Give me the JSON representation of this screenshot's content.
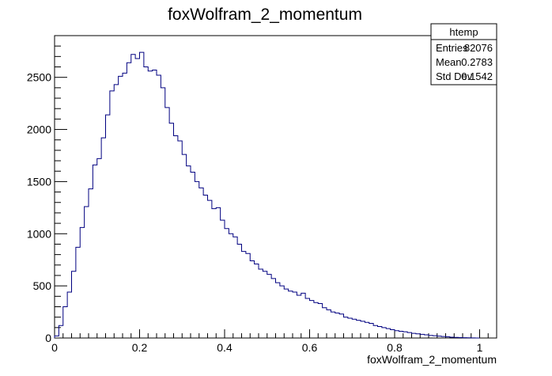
{
  "chart_data": {
    "type": "histogram",
    "title": "foxWolfram_2_momentum",
    "xlabel": "foxWolfram_2_momentum",
    "ylabel": "",
    "xlim": [
      0,
      1.04
    ],
    "ylim": [
      0,
      2900
    ],
    "x_ticks": [
      0,
      0.2,
      0.4,
      0.6,
      0.8,
      1
    ],
    "x_tick_labels": [
      "0",
      "0.2",
      "0.4",
      "0.6",
      "0.8",
      "1"
    ],
    "y_ticks": [
      0,
      500,
      1000,
      1500,
      2000,
      2500
    ],
    "y_tick_labels": [
      "0",
      "500",
      "1000",
      "1500",
      "2000",
      "2500"
    ],
    "bin_start": 0,
    "bin_width": 0.01,
    "values": [
      20,
      120,
      300,
      440,
      640,
      870,
      1060,
      1260,
      1430,
      1660,
      1720,
      1920,
      2140,
      2370,
      2430,
      2510,
      2540,
      2640,
      2720,
      2680,
      2740,
      2600,
      2560,
      2570,
      2520,
      2400,
      2210,
      2060,
      1940,
      1890,
      1760,
      1650,
      1590,
      1500,
      1440,
      1370,
      1320,
      1240,
      1250,
      1130,
      1050,
      1000,
      970,
      900,
      830,
      810,
      740,
      710,
      660,
      640,
      610,
      570,
      530,
      500,
      470,
      450,
      440,
      410,
      430,
      380,
      360,
      340,
      330,
      290,
      270,
      250,
      240,
      230,
      200,
      190,
      180,
      170,
      160,
      150,
      140,
      120,
      110,
      100,
      90,
      80,
      70,
      65,
      60,
      52,
      45,
      40,
      35,
      30,
      25,
      22,
      18,
      14,
      11,
      8,
      6,
      4,
      3,
      2,
      1,
      0
    ],
    "line_color": "#000080",
    "grid": false,
    "stats_box": {
      "title": "htemp",
      "rows": [
        {
          "label": "Entries",
          "value": "82076"
        },
        {
          "label": "Mean",
          "value": "0.2783"
        },
        {
          "label": "Std Dev",
          "value": "0.1542"
        }
      ],
      "placement": "top-right"
    }
  }
}
